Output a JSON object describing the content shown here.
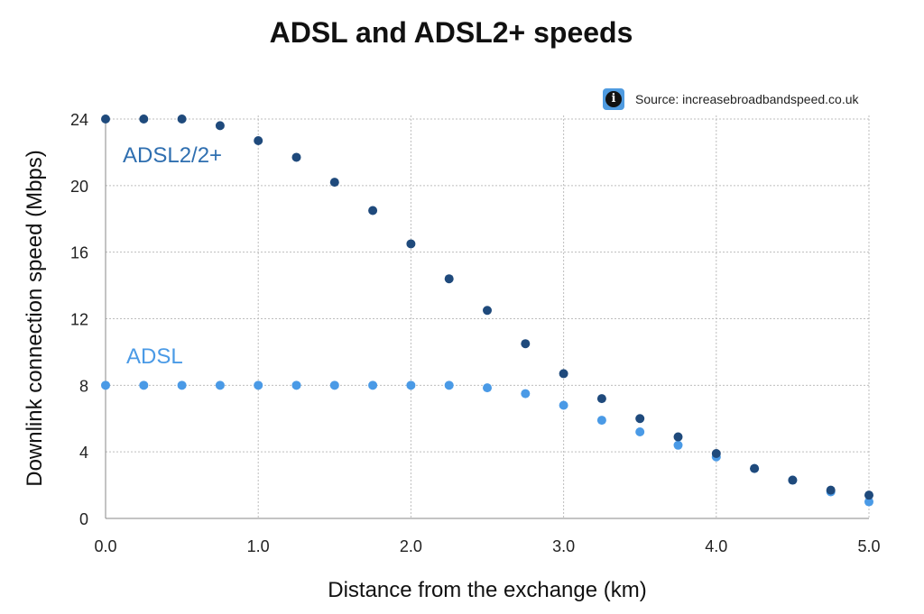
{
  "colors": {
    "adsl2": "#1f4a7c",
    "adsl": "#4a9ae6",
    "adsl2_label": "#2f6fb0",
    "adsl_label": "#4a9ae6",
    "grid": "#bdbdbd",
    "info_icon_bg": "#4f9be0"
  },
  "source": {
    "icon": "info-icon",
    "text": "Source: increasebroadbandspeed.co.uk"
  },
  "chart_data": {
    "type": "scatter",
    "title": "ADSL and ADSL2+ speeds",
    "xlabel": "Distance from the exchange (km)",
    "ylabel": "Downlink connection speed (Mbps)",
    "xlim": [
      0,
      5
    ],
    "ylim": [
      0,
      24
    ],
    "x_ticks": [
      "0.0",
      "1.0",
      "2.0",
      "3.0",
      "4.0",
      "5.0"
    ],
    "y_ticks": [
      "0",
      "4",
      "8",
      "12",
      "16",
      "20",
      "24"
    ],
    "grid": true,
    "series": [
      {
        "name": "ADSL2/2+",
        "x": [
          0,
          0.25,
          0.5,
          0.75,
          1.0,
          1.25,
          1.5,
          1.75,
          2.0,
          2.25,
          2.5,
          2.75,
          3.0,
          3.25,
          3.5,
          3.75,
          4.0,
          4.25,
          4.5,
          4.75,
          5.0
        ],
        "values": [
          24,
          24,
          24,
          23.6,
          22.7,
          21.7,
          20.2,
          18.5,
          16.5,
          14.4,
          12.5,
          10.5,
          8.7,
          7.2,
          6.0,
          4.9,
          3.9,
          3.0,
          2.3,
          1.7,
          1.4
        ]
      },
      {
        "name": "ADSL",
        "x": [
          0,
          0.25,
          0.5,
          0.75,
          1.0,
          1.25,
          1.5,
          1.75,
          2.0,
          2.25,
          2.5,
          2.75,
          3.0,
          3.25,
          3.5,
          3.75,
          4.0,
          4.25,
          4.5,
          4.75,
          5.0
        ],
        "values": [
          8,
          8,
          8,
          8,
          8,
          8,
          8,
          8,
          8,
          8,
          7.85,
          7.5,
          6.8,
          5.9,
          5.2,
          4.4,
          3.7,
          3.0,
          2.3,
          1.6,
          1.0
        ]
      }
    ]
  }
}
